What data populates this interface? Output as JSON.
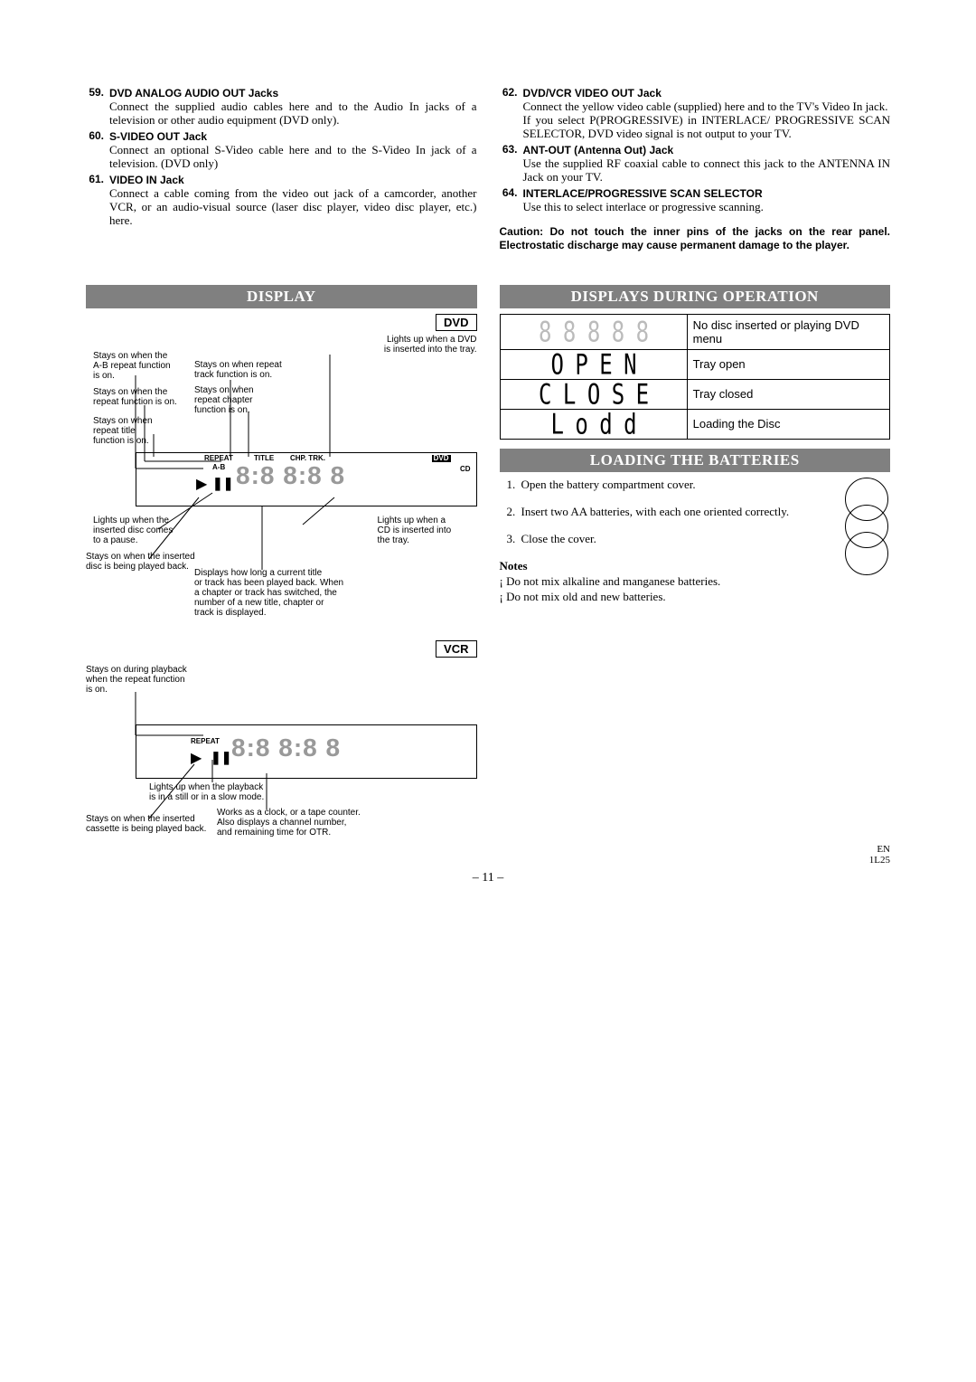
{
  "items_left": [
    {
      "n": "59.",
      "t": "DVD ANALOG AUDIO OUT Jacks",
      "d": "Connect the supplied audio cables here and to the Audio In jacks of a television or other audio equipment (DVD only)."
    },
    {
      "n": "60.",
      "t": "S-VIDEO OUT Jack",
      "d": "Connect an optional S-Video cable here and to the S-Video In jack of a television. (DVD only)"
    },
    {
      "n": "61.",
      "t": "VIDEO IN Jack",
      "d": "Connect a cable coming from the video out jack of a camcorder, another VCR, or an audio-visual source (laser disc player, video disc player, etc.) here."
    }
  ],
  "items_right": [
    {
      "n": "62.",
      "t": "DVD/VCR VIDEO OUT Jack",
      "d": "Connect the yellow video cable (supplied) here and to the TV's Video In jack.\nIf you select P(PROGRESSIVE) in INTERLACE/ PROGRESSIVE SCAN SELECTOR, DVD video signal is not output to your TV."
    },
    {
      "n": "63.",
      "t": "ANT-OUT (Antenna Out) Jack",
      "d": "Use the supplied RF coaxial cable to connect this jack to the ANTENNA IN Jack on your TV."
    },
    {
      "n": "64.",
      "t": "INTERLACE/PROGRESSIVE SCAN SELECTOR",
      "d": "Use this to select interlace or progressive scanning."
    }
  ],
  "caution": "Caution: Do not touch the inner pins of the jacks on the rear panel. Electrostatic discharge may cause permanent damage to the player.",
  "sec_display": "DISPLAY",
  "sec_ops": "DISPLAYS DURING OPERATION",
  "sec_batt": "LOADING THE BATTERIES",
  "tag_dvd": "DVD",
  "tag_vcr": "VCR",
  "dvd_callouts": {
    "c1": "Lights up when a DVD\nis inserted into the tray.",
    "c2": "Stays on when the\nA-B repeat function\nis on.",
    "c3": "Stays on when repeat\ntrack function is on.",
    "c4": "Stays on when the\nrepeat function is on.",
    "c5": "Stays on when\nrepeat chapter\nfunction is on.",
    "c6": "Stays on when\nrepeat title\nfunction is on.",
    "c7": "Lights up when the\ninserted disc comes\nto a pause.",
    "c8": "Lights up when a\nCD is inserted into\nthe tray.",
    "c9": "Stays on when the inserted\ndisc is being played back.",
    "c10": "Displays how long a current title\nor track has been played back. When\na chapter or track has switched, the\nnumber of a new title, chapter or\ntrack is displayed.",
    "lbl_repeat": "REPEAT",
    "lbl_ab": "A-B",
    "lbl_title": "TITLE",
    "lbl_chp": "CHP. TRK.",
    "lbl_dvd": "DVD",
    "lbl_cd": "CD"
  },
  "vcr_callouts": {
    "c1": "Stays on during playback\nwhen the repeat function\nis on.",
    "c2": "Lights up when the playback\nis in a still or in a slow mode.",
    "c3": "Stays on when the inserted\ncassette is being played back.",
    "c4": "Works as a clock, or a tape counter.\nAlso displays a channel number,\nand remaining time for OTR.",
    "lbl_repeat": "REPEAT"
  },
  "states": [
    {
      "d": "",
      "t": "No disc inserted or playing DVD menu"
    },
    {
      "d": "OPEN",
      "t": "Tray open"
    },
    {
      "d": "CLOSE",
      "t": "Tray closed"
    },
    {
      "d": "Lodd",
      "t": "Loading the Disc"
    }
  ],
  "battery_steps": [
    {
      "n": "1.",
      "t": "Open the battery compartment cover."
    },
    {
      "n": "2.",
      "t": "Insert two AA batteries, with each one oriented correctly."
    },
    {
      "n": "3.",
      "t": "Close the cover."
    }
  ],
  "notes_h": "Notes",
  "notes": [
    "Do not mix alkaline and manganese batteries.",
    "Do not mix old and new batteries."
  ],
  "page": "– 11 –",
  "footer_en": "EN",
  "footer_code": "1L25"
}
